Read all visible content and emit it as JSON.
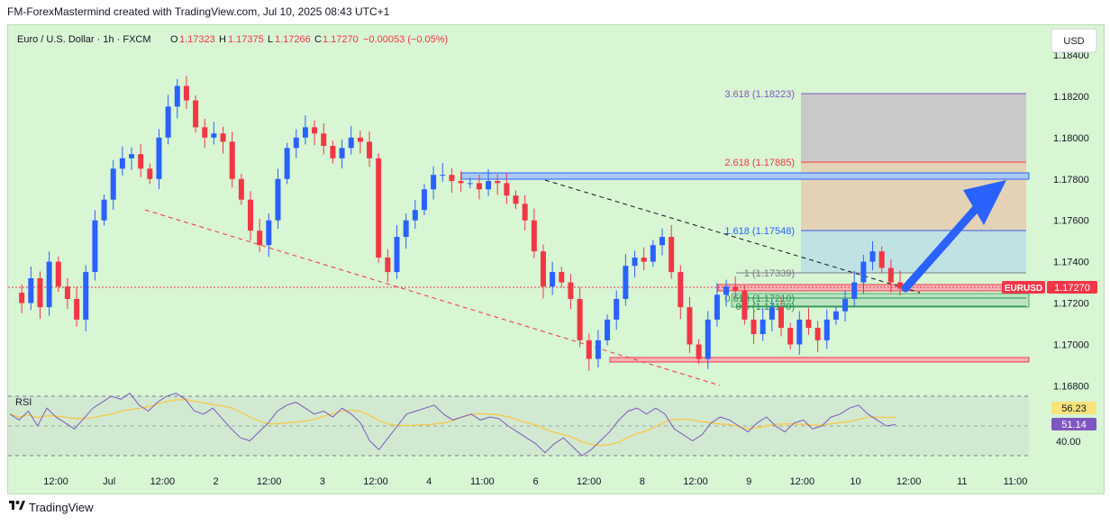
{
  "caption": "FM-ForexMastermind created with TradingView.com, Jul 10, 2025 08:43 UTC+1",
  "footer_brand": "TradingView",
  "footer_icon": "tradingview-logo-icon",
  "legend": {
    "symbol": "Euro / U.S. Dollar · 1h · FXCM",
    "o_label": "O",
    "o_val": "1.17323",
    "h_label": "H",
    "h_val": "1.17375",
    "l_label": "L",
    "l_val": "1.17266",
    "c_label": "C",
    "c_val": "1.17270",
    "chg": "−0.00053 (−0.05%)"
  },
  "currency_button": "USD",
  "price_axis": [
    "1.18400",
    "1.18200",
    "1.18000",
    "1.17800",
    "1.17600",
    "1.17400",
    "1.17200",
    "1.17000",
    "1.16800"
  ],
  "last_price_tag": {
    "symbol": "EURUSD",
    "price": "1.17270"
  },
  "time_axis": [
    "12:00",
    "Jul",
    "12:00",
    "2",
    "12:00",
    "3",
    "12:00",
    "4",
    "11:00",
    "6",
    "12:00",
    "8",
    "12:00",
    "9",
    "12:00",
    "10",
    "12:00",
    "11",
    "11:00"
  ],
  "fib_labels": [
    "3.618 (1.18223)",
    "2.618 (1.17885)",
    "1.618 (1.17548)",
    "1 (1.17339)",
    "0.618 (1.17210)",
    "0.5 (1.17170)"
  ],
  "rsi": {
    "title": "RSI",
    "value_yellow": "56.23",
    "value_purple": "51.14",
    "level": "40.00"
  },
  "colors": {
    "up": "#2962ff",
    "down": "#f23645",
    "bg": "#d8f5d4",
    "rsi_line": "#7e57c2",
    "rsi_ma": "#f7c948",
    "arrow": "#2962ff"
  },
  "chart_data": {
    "type": "candlestick",
    "title": "Euro / U.S. Dollar · 1h · FXCM",
    "ylim": [
      1.1678,
      1.185
    ],
    "last_close": 1.1727,
    "y_ticks": [
      1.184,
      1.182,
      1.18,
      1.178,
      1.176,
      1.174,
      1.172,
      1.17,
      1.168
    ],
    "x_ticks": [
      "12:00",
      "Jul",
      "12:00",
      "2",
      "12:00",
      "3",
      "12:00",
      "4",
      "11:00",
      "6",
      "12:00",
      "8",
      "12:00",
      "9",
      "12:00",
      "10",
      "12:00",
      "11",
      "11:00"
    ],
    "price_path": [
      1.1725,
      1.172,
      1.1732,
      1.1718,
      1.174,
      1.1728,
      1.1722,
      1.1712,
      1.1735,
      1.176,
      1.177,
      1.1785,
      1.179,
      1.1792,
      1.1785,
      1.178,
      1.18,
      1.1815,
      1.1825,
      1.1818,
      1.1805,
      1.18,
      1.1802,
      1.1798,
      1.178,
      1.177,
      1.1755,
      1.1748,
      1.176,
      1.178,
      1.1795,
      1.18,
      1.1805,
      1.1802,
      1.1796,
      1.179,
      1.1795,
      1.18,
      1.1798,
      1.179,
      1.1742,
      1.1735,
      1.1752,
      1.176,
      1.1765,
      1.1775,
      1.1782,
      1.1782,
      1.1779,
      1.1778,
      1.1778,
      1.1775,
      1.1779,
      1.1778,
      1.1772,
      1.1768,
      1.176,
      1.1745,
      1.1728,
      1.1735,
      1.173,
      1.1722,
      1.1702,
      1.1693,
      1.1702,
      1.1712,
      1.1722,
      1.1738,
      1.1742,
      1.174,
      1.1748,
      1.1752,
      1.1735,
      1.1718,
      1.17,
      1.1693,
      1.1712,
      1.1724,
      1.1728,
      1.1726,
      1.1712,
      1.1705,
      1.1712,
      1.1718,
      1.1708,
      1.17,
      1.1712,
      1.1708,
      1.1702,
      1.1712,
      1.1716,
      1.1722,
      1.173,
      1.174,
      1.1745,
      1.1737,
      1.173,
      1.1727
    ],
    "levels": {
      "resistance_zone": [
        1.1781,
        1.1783
      ],
      "support_zone": [
        1.1691,
        1.16925
      ],
      "current_zone": [
        1.17255,
        1.17295
      ],
      "fib_3_618": 1.18223,
      "fib_2_618": 1.17885,
      "fib_1_618": 1.17548,
      "fib_1": 1.17339,
      "fib_0_618": 1.1721,
      "fib_0_5": 1.1717
    },
    "rsi": {
      "levels": [
        70,
        50,
        30
      ],
      "latest": 51.14,
      "ma_latest": 56.23,
      "values": [
        58,
        54,
        60,
        50,
        62,
        56,
        52,
        48,
        55,
        62,
        66,
        70,
        68,
        72,
        64,
        60,
        66,
        70,
        72,
        68,
        60,
        58,
        62,
        55,
        48,
        42,
        40,
        46,
        52,
        60,
        64,
        66,
        62,
        58,
        60,
        56,
        62,
        58,
        52,
        40,
        34,
        42,
        50,
        58,
        60,
        62,
        64,
        58,
        54,
        56,
        58,
        54,
        56,
        55,
        50,
        46,
        42,
        38,
        32,
        38,
        42,
        36,
        30,
        34,
        40,
        46,
        54,
        60,
        62,
        58,
        62,
        58,
        48,
        44,
        40,
        44,
        52,
        56,
        54,
        50,
        46,
        52,
        56,
        50,
        46,
        52,
        54,
        48,
        50,
        56,
        58,
        62,
        64,
        58,
        54,
        50,
        51
      ]
    }
  }
}
